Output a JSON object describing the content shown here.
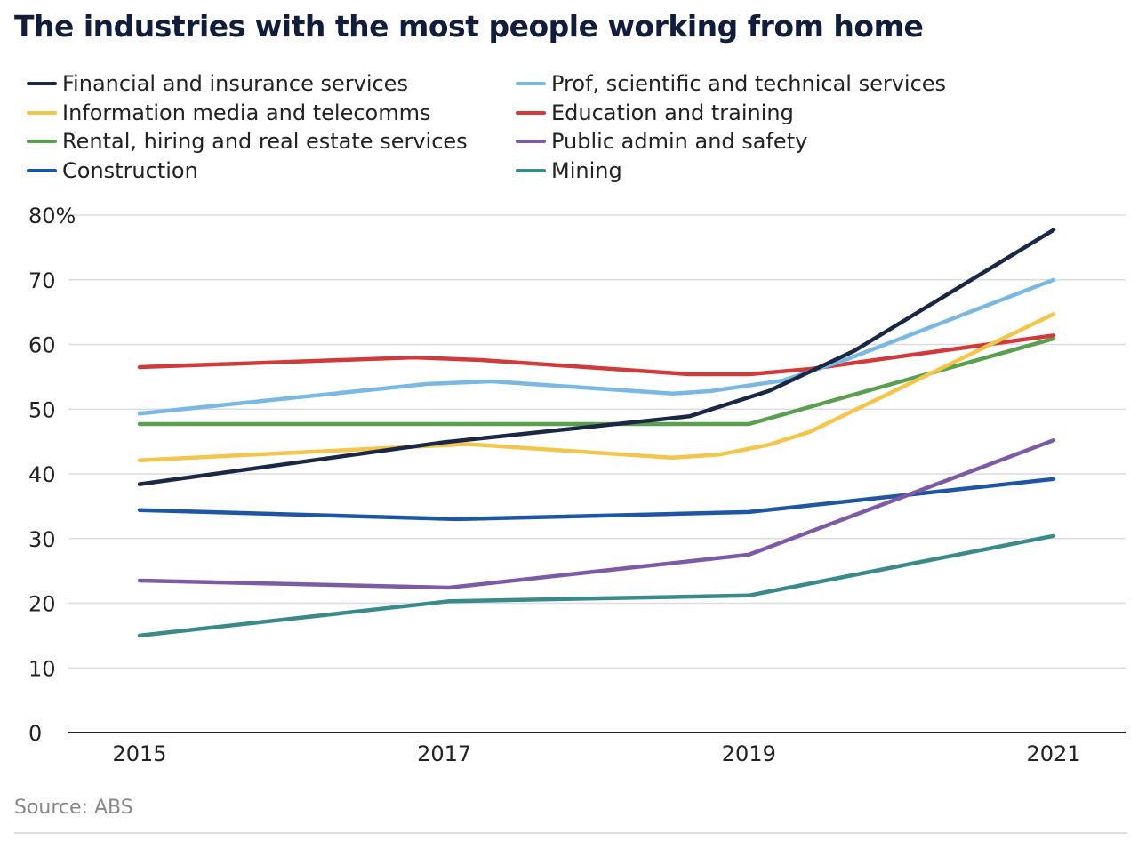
{
  "chart_data": {
    "type": "line",
    "title": "The industries with the most people working from home",
    "source": "Source: ABS",
    "xlabel": "",
    "ylabel": "",
    "xlim": [
      2015,
      2021
    ],
    "ylim": [
      0,
      80
    ],
    "x_ticks": [
      "2015",
      "2017",
      "2019",
      "2021"
    ],
    "y_ticks": [
      "0",
      "10",
      "20",
      "30",
      "40",
      "50",
      "60",
      "70",
      "80%"
    ],
    "grid": true,
    "legend_position": "top",
    "series": [
      {
        "name": "Financial and insurance services",
        "color": "#1b2845",
        "points": [
          [
            2015,
            38.4
          ],
          [
            2017,
            44.9
          ],
          [
            2018.61,
            48.9
          ],
          [
            2019.13,
            52.8
          ],
          [
            2019.69,
            59.0
          ],
          [
            2021,
            77.7
          ]
        ]
      },
      {
        "name": "Prof, scientific and technical services",
        "color": "#7ab8e3",
        "points": [
          [
            2015,
            49.3
          ],
          [
            2016.89,
            53.9
          ],
          [
            2017.31,
            54.3
          ],
          [
            2018.5,
            52.4
          ],
          [
            2018.75,
            52.8
          ],
          [
            2019.22,
            54.4
          ],
          [
            2019.63,
            57.6
          ],
          [
            2021,
            70.0
          ]
        ]
      },
      {
        "name": "Information media and telecomms",
        "color": "#f4c54d",
        "points": [
          [
            2015,
            42.1
          ],
          [
            2017.15,
            44.6
          ],
          [
            2018.49,
            42.5
          ],
          [
            2018.81,
            43.0
          ],
          [
            2019.13,
            44.5
          ],
          [
            2019.4,
            46.5
          ],
          [
            2021,
            64.7
          ]
        ]
      },
      {
        "name": "Education and training",
        "color": "#cf3a3b",
        "points": [
          [
            2015,
            56.5
          ],
          [
            2016.8,
            58.0
          ],
          [
            2017.24,
            57.6
          ],
          [
            2018.61,
            55.4
          ],
          [
            2019,
            55.4
          ],
          [
            2019.4,
            56.2
          ],
          [
            2020.04,
            58.3
          ],
          [
            2021,
            61.4
          ]
        ]
      },
      {
        "name": "Rental, hiring and real estate services",
        "color": "#5a9f4f",
        "points": [
          [
            2015,
            47.7
          ],
          [
            2019,
            47.7
          ],
          [
            2021,
            60.9
          ]
        ]
      },
      {
        "name": "Public admin and safety",
        "color": "#7c5aa6",
        "points": [
          [
            2015,
            23.5
          ],
          [
            2017.03,
            22.4
          ],
          [
            2019,
            27.5
          ],
          [
            2021,
            45.2
          ]
        ]
      },
      {
        "name": "Construction",
        "color": "#1f56a4",
        "points": [
          [
            2015,
            34.4
          ],
          [
            2017.09,
            33.0
          ],
          [
            2019,
            34.1
          ],
          [
            2021,
            39.2
          ]
        ]
      },
      {
        "name": "Mining",
        "color": "#3b8a8b",
        "points": [
          [
            2015,
            15.0
          ],
          [
            2017.03,
            20.3
          ],
          [
            2019,
            21.2
          ],
          [
            2021,
            30.4
          ]
        ]
      }
    ]
  }
}
